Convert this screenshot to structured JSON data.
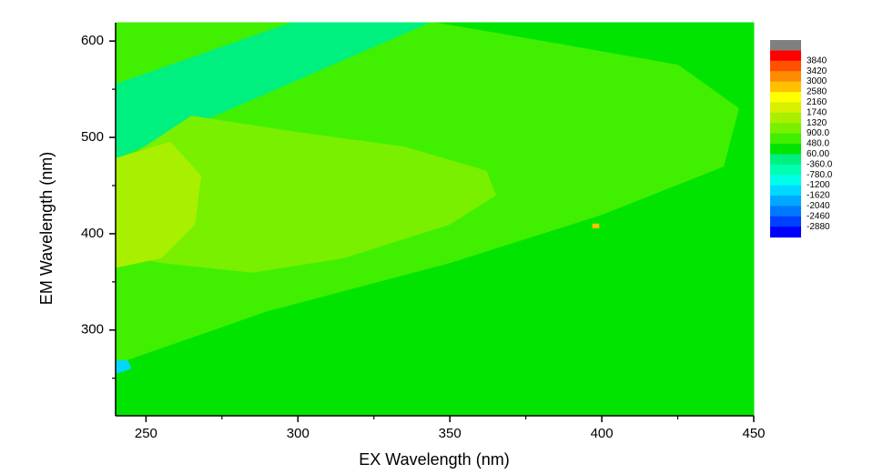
{
  "chart_data": {
    "type": "contour",
    "xlabel": "EX Wavelength (nm)",
    "ylabel": "EM Wavelength (nm)",
    "xlim": [
      240,
      450
    ],
    "ylim": [
      211,
      619
    ],
    "xticks": [
      250,
      300,
      350,
      400,
      450
    ],
    "yticks": [
      300,
      400,
      500,
      600
    ],
    "xminorticks": [
      275,
      325,
      375,
      425
    ],
    "yminorticks": [
      250,
      350,
      450,
      550
    ],
    "levels": [
      3840,
      3420,
      3000,
      2580,
      2160,
      1740,
      1320,
      {
        "value": 900,
        "label": "900.0"
      },
      {
        "value": 480,
        "label": "480.0"
      },
      {
        "value": 60,
        "label": "60.00"
      },
      {
        "value": -360,
        "label": "-360.0"
      },
      {
        "value": -780,
        "label": "-780.0"
      },
      -1200,
      -1620,
      -2040,
      -2460,
      -2880
    ],
    "over_color": "#808080",
    "colors": [
      "#ff0000",
      "#ff5000",
      "#ff8c00",
      "#ffc000",
      "#ffff00",
      "#d8f000",
      "#a8f000",
      "#78f000",
      "#40f000",
      "#00e400",
      "#00f080",
      "#00ffb0",
      "#00ffe8",
      "#00d8ff",
      "#00a8ff",
      "#0078ff",
      "#0040ff",
      "#0000ff"
    ],
    "regions": [
      {
        "value": 270,
        "points": [
          [
            240,
            211
          ],
          [
            450,
            211
          ],
          [
            450,
            619
          ],
          [
            240,
            619
          ]
        ]
      },
      {
        "value": 690,
        "points": [
          [
            240,
            265
          ],
          [
            290,
            320
          ],
          [
            350,
            370
          ],
          [
            400,
            420
          ],
          [
            440,
            470
          ],
          [
            445,
            530
          ],
          [
            425,
            575
          ],
          [
            380,
            600
          ],
          [
            345,
            619
          ],
          [
            240,
            619
          ]
        ]
      },
      {
        "value": -150,
        "points": [
          [
            240,
            555
          ],
          [
            298,
            619
          ],
          [
            343,
            619
          ],
          [
            240,
            478
          ]
        ]
      },
      {
        "value": 1100,
        "points": [
          [
            240,
            470
          ],
          [
            265,
            522
          ],
          [
            300,
            505
          ],
          [
            335,
            490
          ],
          [
            362,
            465
          ],
          [
            365,
            440
          ],
          [
            350,
            410
          ],
          [
            315,
            375
          ],
          [
            285,
            360
          ],
          [
            255,
            370
          ],
          [
            240,
            380
          ]
        ]
      },
      {
        "value": 1500,
        "points": [
          [
            240,
            478
          ],
          [
            258,
            495
          ],
          [
            268,
            460
          ],
          [
            266,
            410
          ],
          [
            255,
            375
          ],
          [
            240,
            365
          ]
        ]
      },
      {
        "value": 2800,
        "points": [
          [
            397,
            406
          ],
          [
            399,
            406
          ],
          [
            399,
            410
          ],
          [
            397,
            410
          ]
        ]
      },
      {
        "value": -1400,
        "points": [
          [
            240,
            255
          ],
          [
            245,
            260
          ],
          [
            244,
            268
          ],
          [
            240,
            268
          ]
        ]
      }
    ]
  }
}
